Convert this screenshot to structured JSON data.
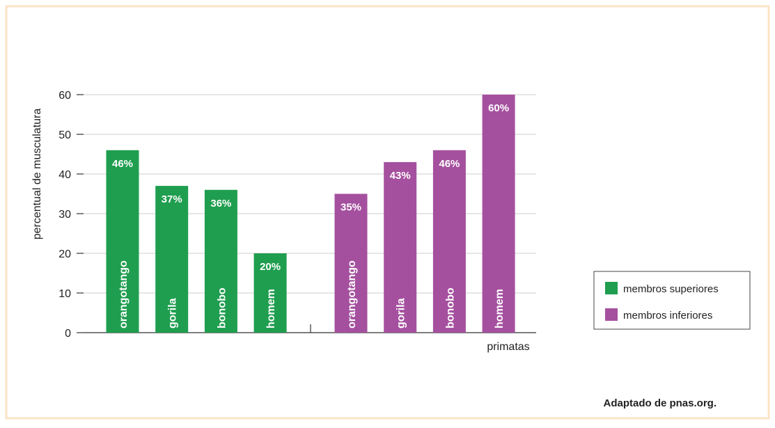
{
  "chart_data": {
    "type": "bar",
    "y_label": "percentual de musculatura",
    "x_label": "primatas",
    "source": "Adaptado de pnas.org.",
    "categories": [
      "orangotango",
      "gorila",
      "bonobo",
      "homem"
    ],
    "series": [
      {
        "name": "membros superiores",
        "color": "#1f9e4f",
        "values": [
          46,
          37,
          36,
          20
        ],
        "value_labels": [
          "46%",
          "37%",
          "36%",
          "20%"
        ]
      },
      {
        "name": "membros inferiores",
        "color": "#a5509f",
        "values": [
          35,
          43,
          46,
          60
        ],
        "value_labels": [
          "35%",
          "43%",
          "46%",
          "60%"
        ]
      }
    ],
    "ylim": [
      0,
      60
    ],
    "yticks": [
      0,
      10,
      20,
      30,
      40,
      50,
      60
    ],
    "grid": true,
    "legend": "right"
  }
}
